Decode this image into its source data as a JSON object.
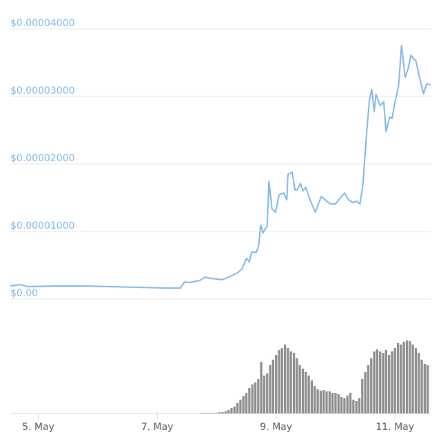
{
  "chart_data": {
    "type": "line",
    "xlim": [
      4.53,
      11.6
    ],
    "xticks": [
      {
        "value": 5,
        "label": "5. May"
      },
      {
        "value": 7,
        "label": "7. May"
      },
      {
        "value": 9,
        "label": "9. May"
      },
      {
        "value": 11,
        "label": "11. May"
      }
    ],
    "ylim": [
      0,
      4.224e-05
    ],
    "yticks": [
      {
        "value": 0,
        "label": "$0.00"
      },
      {
        "value": 1e-05,
        "label": "$0.00001000"
      },
      {
        "value": 2e-05,
        "label": "$0.00002000"
      },
      {
        "value": 3e-05,
        "label": "$0.00003000"
      },
      {
        "value": 4e-05,
        "label": "$0.00004000"
      }
    ],
    "y2lim": [
      0,
      120
    ],
    "grid": true,
    "series": [
      {
        "type": "line",
        "color": "#7cb5ec",
        "x": [
          4.53,
          4.7,
          4.82,
          5.28,
          5.75,
          6.21,
          6.67,
          7.14,
          7.31,
          7.39,
          7.46,
          7.54,
          7.72,
          7.81,
          7.89,
          8.01,
          8.09,
          8.18,
          8.35,
          8.43,
          8.5,
          8.55,
          8.59,
          8.67,
          8.71,
          8.74,
          8.78,
          8.85,
          8.88,
          8.93,
          8.99,
          9.05,
          9.13,
          9.18,
          9.2,
          9.27,
          9.32,
          9.36,
          9.41,
          9.45,
          9.5,
          9.57,
          9.66,
          9.76,
          9.85,
          9.92,
          10.0,
          10.07,
          10.15,
          10.22,
          10.29,
          10.36,
          10.41,
          10.46,
          10.52,
          10.57,
          10.61,
          10.65,
          10.68,
          10.75,
          10.81,
          10.85,
          10.91,
          10.95,
          11.0,
          11.06,
          11.11,
          11.17,
          11.22,
          11.27,
          11.31,
          11.35,
          11.42,
          11.48,
          11.53,
          11.6
        ],
        "values": [
          1.94e-06,
          2.14e-06,
          1.84e-06,
          1.94e-06,
          1.94e-06,
          1.84e-06,
          1.73e-06,
          1.63e-06,
          1.63e-06,
          1.63e-06,
          2.55e-06,
          2.45e-06,
          2.76e-06,
          3.27e-06,
          3.06e-06,
          2.96e-06,
          2.86e-06,
          3.16e-06,
          3.88e-06,
          4.49e-06,
          6.02e-06,
          5.51e-06,
          6.94e-06,
          6.94e-06,
          8.06e-06,
          1.092e-05,
          9.8e-06,
          1.082e-05,
          1.745e-05,
          1.337e-05,
          1.286e-05,
          1.541e-05,
          1.571e-05,
          1.469e-05,
          1.847e-05,
          1.878e-05,
          1.612e-05,
          1.622e-05,
          1.714e-05,
          1.602e-05,
          1.653e-05,
          1.469e-05,
          1.286e-05,
          1.52e-05,
          1.449e-05,
          1.408e-05,
          1.408e-05,
          1.49e-05,
          1.571e-05,
          1.469e-05,
          1.429e-05,
          1.449e-05,
          1.408e-05,
          1.694e-05,
          2.429e-05,
          2.949e-05,
          3.102e-05,
          2.776e-05,
          3.031e-05,
          2.867e-05,
          2.918e-05,
          2.48e-05,
          2.694e-05,
          2.673e-05,
          2.918e-05,
          3.153e-05,
          3.755e-05,
          3.286e-05,
          3.408e-05,
          3.612e-05,
          3.561e-05,
          3.531e-05,
          3.255e-05,
          3.041e-05,
          3.184e-05,
          3.173e-05
        ]
      },
      {
        "type": "bar",
        "axis": "y2",
        "color": "#8c8c8c",
        "x": [
          7.75,
          7.8,
          7.85,
          7.9,
          7.95,
          8.0,
          8.05,
          8.1,
          8.15,
          8.2,
          8.25,
          8.3,
          8.35,
          8.4,
          8.45,
          8.5,
          8.55,
          8.6,
          8.65,
          8.7,
          8.75,
          8.8,
          8.85,
          8.9,
          8.95,
          9.0,
          9.05,
          9.1,
          9.15,
          9.2,
          9.25,
          9.3,
          9.35,
          9.4,
          9.45,
          9.5,
          9.55,
          9.6,
          9.65,
          9.7,
          9.75,
          9.8,
          9.85,
          9.9,
          9.95,
          10.0,
          10.05,
          10.1,
          10.15,
          10.2,
          10.25,
          10.3,
          10.35,
          10.4,
          10.45,
          10.5,
          10.55,
          10.6,
          10.65,
          10.7,
          10.75,
          10.8,
          10.85,
          10.9,
          10.95,
          11.0,
          11.05,
          11.1,
          11.15,
          11.2,
          11.25,
          11.3,
          11.35,
          11.4,
          11.45,
          11.5,
          11.55
        ],
        "values": [
          1,
          1,
          1,
          1,
          1,
          1,
          2,
          2,
          3,
          5,
          8,
          10,
          15,
          20,
          25,
          30,
          37,
          42,
          45,
          50,
          75,
          55,
          58,
          70,
          78,
          85,
          92,
          95,
          100,
          95,
          90,
          88,
          80,
          70,
          65,
          60,
          55,
          48,
          40,
          35,
          33,
          34,
          32,
          32,
          30,
          30,
          28,
          24,
          22,
          26,
          30,
          20,
          18,
          22,
          50,
          60,
          70,
          80,
          90,
          93,
          90,
          88,
          92,
          85,
          90,
          95,
          102,
          100,
          104,
          106,
          105,
          100,
          95,
          88,
          78,
          72,
          70
        ]
      }
    ]
  }
}
